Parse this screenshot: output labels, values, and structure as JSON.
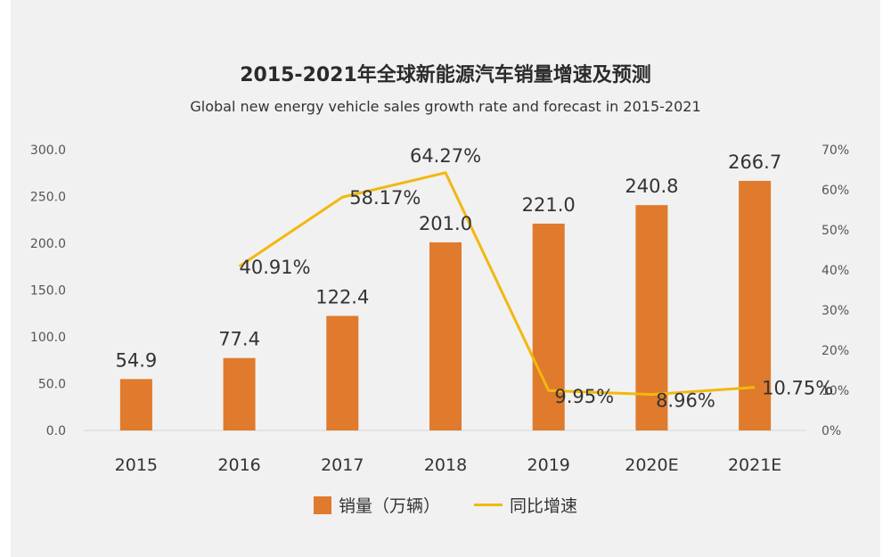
{
  "chart_data": {
    "type": "bar",
    "title": "2015-2021年全球新能源汽车销量增速及预测",
    "subtitle": "Global new energy vehicle sales growth rate and forecast in 2015-2021",
    "categories": [
      "2015",
      "2016",
      "2017",
      "2018",
      "2019",
      "2020E",
      "2021E"
    ],
    "series": [
      {
        "name": "销量（万辆）",
        "type": "bar",
        "axis": "left",
        "values": [
          54.9,
          77.4,
          122.4,
          201.0,
          221.0,
          240.8,
          266.7
        ],
        "labels": [
          "54.9",
          "77.4",
          "122.4",
          "201.0",
          "221.0",
          "240.8",
          "266.7"
        ]
      },
      {
        "name": "同比增速",
        "type": "line",
        "axis": "right",
        "values": [
          null,
          40.91,
          58.17,
          64.27,
          9.95,
          8.96,
          10.75
        ],
        "labels": [
          "",
          "40.91%",
          "58.17%",
          "64.27%",
          "9.95%",
          "8.96%",
          "10.75%"
        ]
      }
    ],
    "y_left": {
      "lim": [
        0,
        300
      ],
      "ticks": [
        "0.0",
        "50.0",
        "100.0",
        "150.0",
        "200.0",
        "250.0",
        "300.0"
      ]
    },
    "y_right": {
      "lim": [
        0,
        70
      ],
      "ticks": [
        "0%",
        "10%",
        "20%",
        "30%",
        "40%",
        "50%",
        "60%",
        "70%"
      ]
    },
    "grid": false,
    "legend": "bottom",
    "colors": {
      "bar": "#e07a2c",
      "line": "#f1b80f",
      "background": "#f1f1f1",
      "text": "#333333",
      "axis_tick": "#555555"
    }
  }
}
